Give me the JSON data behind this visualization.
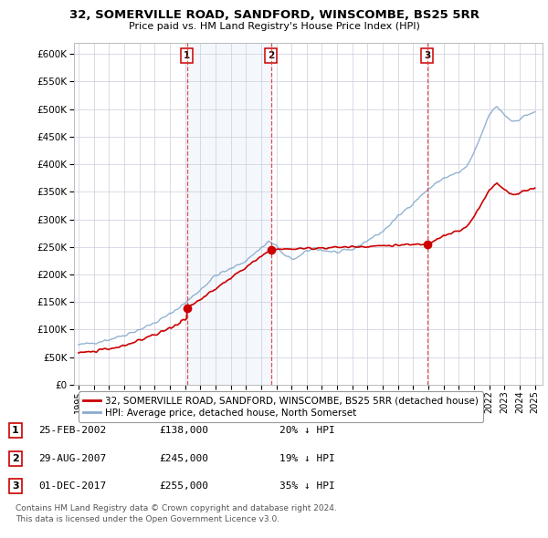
{
  "title": "32, SOMERVILLE ROAD, SANDFORD, WINSCOMBE, BS25 5RR",
  "subtitle": "Price paid vs. HM Land Registry's House Price Index (HPI)",
  "legend_label_red": "32, SOMERVILLE ROAD, SANDFORD, WINSCOMBE, BS25 5RR (detached house)",
  "legend_label_blue": "HPI: Average price, detached house, North Somerset",
  "transactions": [
    {
      "num": 1,
      "date": "25-FEB-2002",
      "price": 138000,
      "pct": "20%",
      "dir": "↓",
      "year": 2002.14
    },
    {
      "num": 2,
      "date": "29-AUG-2007",
      "price": 245000,
      "pct": "19%",
      "dir": "↓",
      "year": 2007.66
    },
    {
      "num": 3,
      "date": "01-DEC-2017",
      "price": 255000,
      "pct": "35%",
      "dir": "↓",
      "year": 2017.92
    }
  ],
  "footer_line1": "Contains HM Land Registry data © Crown copyright and database right 2024.",
  "footer_line2": "This data is licensed under the Open Government Licence v3.0.",
  "ylim": [
    0,
    620000
  ],
  "xlim": [
    1994.7,
    2025.5
  ],
  "yticks": [
    0,
    50000,
    100000,
    150000,
    200000,
    250000,
    300000,
    350000,
    400000,
    450000,
    500000,
    550000,
    600000
  ],
  "xticks": [
    1995,
    1996,
    1997,
    1998,
    1999,
    2000,
    2001,
    2002,
    2003,
    2004,
    2005,
    2006,
    2007,
    2008,
    2009,
    2010,
    2011,
    2012,
    2013,
    2014,
    2015,
    2016,
    2017,
    2018,
    2019,
    2020,
    2021,
    2022,
    2023,
    2024,
    2025
  ],
  "red_color": "#cc0000",
  "blue_color": "#88aacc",
  "shade_color": "#ddeeff",
  "vline_color": "#dd3333",
  "dot_color": "#cc0000",
  "background_color": "#ffffff",
  "grid_color": "#ccccdd"
}
